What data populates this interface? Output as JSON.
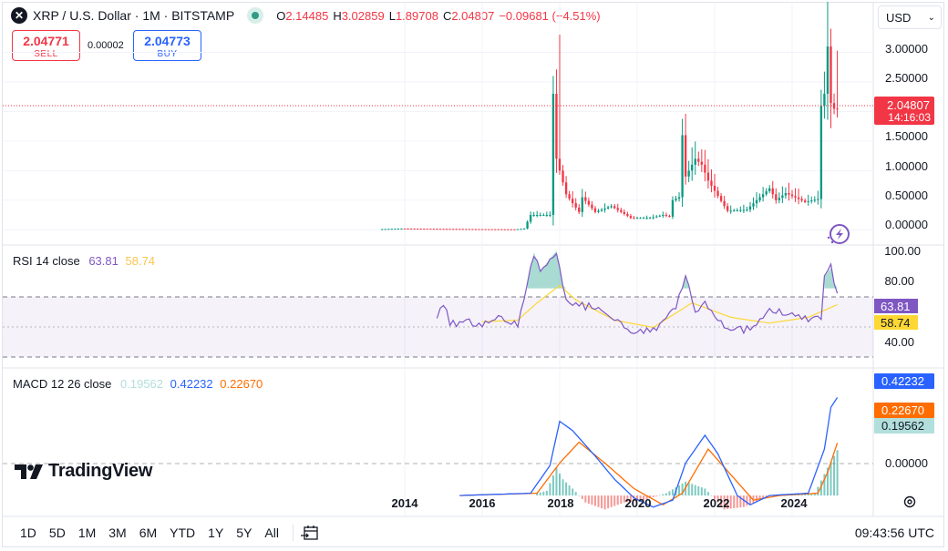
{
  "header": {
    "symbol_title": "XRP / U.S. Dollar · 1M · BITSTAMP",
    "o_label": "O",
    "o_value": "2.14485",
    "h_label": "H",
    "h_value": "3.02859",
    "l_label": "L",
    "l_value": "1.89708",
    "c_label": "C",
    "c_value": "2.04807",
    "change": "−0.09681 (−4.51%)",
    "currency": "USD"
  },
  "trade": {
    "sell_price": "2.04771",
    "sell_label": "SELL",
    "spread": "0.00002",
    "buy_price": "2.04773",
    "buy_label": "BUY"
  },
  "price_axis": {
    "ticks": [
      "3.00000",
      "2.50000",
      "1.50000",
      "1.00000",
      "0.50000",
      "0.00000"
    ],
    "last_price": "2.04807",
    "countdown": "14:16:03"
  },
  "rsi": {
    "title": "RSI 14 close",
    "rsi_value": "63.81",
    "ma_value": "58.74",
    "ticks": [
      "100.00",
      "80.00",
      "40.00"
    ]
  },
  "macd": {
    "title": "MACD 12 26 close",
    "hist_value": "0.19562",
    "macd_value": "0.42232",
    "signal_value": "0.22670",
    "zero_tick": "0.00000"
  },
  "time_axis": [
    "2014",
    "2016",
    "2018",
    "2020",
    "2022",
    "2024"
  ],
  "watermark": "TradingView",
  "bottom": {
    "timeframes": [
      "1D",
      "5D",
      "1M",
      "3M",
      "6M",
      "YTD",
      "1Y",
      "5Y",
      "All"
    ],
    "clock": "09:43:56 UTC"
  },
  "colors": {
    "up": "#089981",
    "down": "#f23645",
    "rsi": "#7e57c2",
    "rsi_ma": "#fdd835",
    "macd": "#2962ff",
    "signal": "#ff6d00",
    "hist_pos": "#26a69a",
    "hist_neg": "#ef5350"
  },
  "chart_data": [
    {
      "type": "candlestick",
      "title": "XRP / U.S. Dollar · 1M · BITSTAMP",
      "ylim": [
        -0.15,
        3.3
      ],
      "x_range": [
        "2013-01",
        "2025-06"
      ],
      "anchors": [
        {
          "t": "2013-06",
          "v": 0.01
        },
        {
          "t": "2014-01",
          "v": 0.02
        },
        {
          "t": "2015-01",
          "v": 0.015
        },
        {
          "t": "2016-12",
          "v": 0.007
        },
        {
          "t": "2017-03",
          "v": 0.02
        },
        {
          "t": "2017-05",
          "v": 0.25
        },
        {
          "t": "2017-11",
          "v": 0.25
        },
        {
          "t": "2017-12",
          "v": 2.3
        },
        {
          "t": "2018-01",
          "v": 1.2
        },
        {
          "t": "2018-04",
          "v": 0.6
        },
        {
          "t": "2018-08",
          "v": 0.3
        },
        {
          "t": "2018-09",
          "v": 0.55
        },
        {
          "t": "2019-01",
          "v": 0.3
        },
        {
          "t": "2019-06",
          "v": 0.4
        },
        {
          "t": "2019-12",
          "v": 0.2
        },
        {
          "t": "2020-06",
          "v": 0.2
        },
        {
          "t": "2020-10",
          "v": 0.25
        },
        {
          "t": "2020-12",
          "v": 0.22
        },
        {
          "t": "2021-01",
          "v": 0.5
        },
        {
          "t": "2021-03",
          "v": 0.55
        },
        {
          "t": "2021-04",
          "v": 1.6
        },
        {
          "t": "2021-05",
          "v": 0.9
        },
        {
          "t": "2021-08",
          "v": 1.2
        },
        {
          "t": "2021-10",
          "v": 1.1
        },
        {
          "t": "2021-12",
          "v": 0.83
        },
        {
          "t": "2022-05",
          "v": 0.4
        },
        {
          "t": "2022-06",
          "v": 0.32
        },
        {
          "t": "2022-12",
          "v": 0.34
        },
        {
          "t": "2023-03",
          "v": 0.5
        },
        {
          "t": "2023-07",
          "v": 0.7
        },
        {
          "t": "2023-09",
          "v": 0.5
        },
        {
          "t": "2023-12",
          "v": 0.62
        },
        {
          "t": "2024-06",
          "v": 0.47
        },
        {
          "t": "2024-10",
          "v": 0.52
        },
        {
          "t": "2024-11",
          "v": 2.1
        },
        {
          "t": "2024-12",
          "v": 2.3
        },
        {
          "t": "2025-01",
          "v": 3.1
        },
        {
          "t": "2025-02",
          "v": 2.14
        },
        {
          "t": "2025-03",
          "v": 2.04807
        }
      ],
      "last_close": 2.04807,
      "high": 3.02859,
      "low": 1.89708,
      "xlabel": "",
      "ylabel": ""
    },
    {
      "type": "line",
      "title": "RSI 14 close",
      "ylim": [
        15,
        100
      ],
      "bands": [
        70,
        30
      ],
      "series": [
        {
          "name": "RSI",
          "points": [
            {
              "t": "2014-11",
              "v": 48
            },
            {
              "t": "2015-01",
              "v": 60
            },
            {
              "t": "2015-03",
              "v": 45
            },
            {
              "t": "2015-08",
              "v": 48
            },
            {
              "t": "2015-12",
              "v": 44
            },
            {
              "t": "2016-06",
              "v": 50
            },
            {
              "t": "2016-12",
              "v": 44
            },
            {
              "t": "2017-03",
              "v": 72
            },
            {
              "t": "2017-05",
              "v": 95
            },
            {
              "t": "2017-07",
              "v": 82
            },
            {
              "t": "2017-12",
              "v": 96
            },
            {
              "t": "2018-03",
              "v": 60
            },
            {
              "t": "2018-09",
              "v": 58
            },
            {
              "t": "2019-06",
              "v": 50
            },
            {
              "t": "2019-12",
              "v": 40
            },
            {
              "t": "2020-06",
              "v": 42
            },
            {
              "t": "2021-01",
              "v": 55
            },
            {
              "t": "2021-04",
              "v": 78
            },
            {
              "t": "2021-07",
              "v": 55
            },
            {
              "t": "2021-10",
              "v": 60
            },
            {
              "t": "2022-06",
              "v": 40
            },
            {
              "t": "2022-12",
              "v": 42
            },
            {
              "t": "2023-07",
              "v": 55
            },
            {
              "t": "2024-02",
              "v": 50
            },
            {
              "t": "2024-10",
              "v": 48
            },
            {
              "t": "2024-11",
              "v": 78
            },
            {
              "t": "2025-01",
              "v": 84
            },
            {
              "t": "2025-03",
              "v": 63.81
            }
          ]
        },
        {
          "name": "RSI MA",
          "points": [
            {
              "t": "2016-01",
              "v": 47
            },
            {
              "t": "2016-12",
              "v": 48
            },
            {
              "t": "2017-06",
              "v": 60
            },
            {
              "t": "2018-01",
              "v": 72
            },
            {
              "t": "2018-06",
              "v": 62
            },
            {
              "t": "2019-06",
              "v": 48
            },
            {
              "t": "2020-06",
              "v": 43
            },
            {
              "t": "2021-06",
              "v": 60
            },
            {
              "t": "2022-06",
              "v": 50
            },
            {
              "t": "2023-06",
              "v": 46
            },
            {
              "t": "2024-06",
              "v": 50
            },
            {
              "t": "2025-03",
              "v": 58.74
            }
          ]
        }
      ]
    },
    {
      "type": "line",
      "title": "MACD 12 26 close",
      "ylim": [
        -0.09,
        0.55
      ],
      "series": [
        {
          "name": "MACD",
          "points": [
            {
              "t": "2015-06",
              "v": 0
            },
            {
              "t": "2017-04",
              "v": 0.01
            },
            {
              "t": "2017-10",
              "v": 0.13
            },
            {
              "t": "2018-01",
              "v": 0.32
            },
            {
              "t": "2018-05",
              "v": 0.28
            },
            {
              "t": "2018-12",
              "v": 0.17
            },
            {
              "t": "2019-06",
              "v": 0.07
            },
            {
              "t": "2019-12",
              "v": -0.01
            },
            {
              "t": "2020-06",
              "v": -0.05
            },
            {
              "t": "2020-12",
              "v": -0.02
            },
            {
              "t": "2021-04",
              "v": 0.14
            },
            {
              "t": "2021-10",
              "v": 0.26
            },
            {
              "t": "2022-02",
              "v": 0.18
            },
            {
              "t": "2022-08",
              "v": 0.0
            },
            {
              "t": "2022-12",
              "v": -0.04
            },
            {
              "t": "2023-06",
              "v": 0.0
            },
            {
              "t": "2024-06",
              "v": 0.01
            },
            {
              "t": "2024-11",
              "v": 0.2
            },
            {
              "t": "2025-01",
              "v": 0.38
            },
            {
              "t": "2025-03",
              "v": 0.42232
            }
          ]
        },
        {
          "name": "Signal",
          "points": [
            {
              "t": "2015-06",
              "v": 0
            },
            {
              "t": "2017-06",
              "v": 0.01
            },
            {
              "t": "2018-01",
              "v": 0.14
            },
            {
              "t": "2018-07",
              "v": 0.23
            },
            {
              "t": "2019-03",
              "v": 0.14
            },
            {
              "t": "2019-12",
              "v": 0.03
            },
            {
              "t": "2020-09",
              "v": -0.04
            },
            {
              "t": "2021-03",
              "v": 0.01
            },
            {
              "t": "2021-11",
              "v": 0.2
            },
            {
              "t": "2022-06",
              "v": 0.09
            },
            {
              "t": "2023-01",
              "v": -0.02
            },
            {
              "t": "2023-09",
              "v": 0.0
            },
            {
              "t": "2024-09",
              "v": 0.01
            },
            {
              "t": "2024-12",
              "v": 0.1
            },
            {
              "t": "2025-03",
              "v": 0.2267
            }
          ]
        }
      ],
      "histogram": [
        {
          "t": "2017-06",
          "v": 0.01
        },
        {
          "t": "2017-09",
          "v": 0.02
        },
        {
          "t": "2017-12",
          "v": 0.12
        },
        {
          "t": "2018-02",
          "v": 0.07
        },
        {
          "t": "2018-05",
          "v": 0.03
        },
        {
          "t": "2018-09",
          "v": -0.03
        },
        {
          "t": "2019-03",
          "v": -0.06
        },
        {
          "t": "2019-09",
          "v": -0.03
        },
        {
          "t": "2020-03",
          "v": -0.02
        },
        {
          "t": "2020-10",
          "v": 0.01
        },
        {
          "t": "2021-04",
          "v": 0.06
        },
        {
          "t": "2021-10",
          "v": 0.03
        },
        {
          "t": "2022-04",
          "v": -0.06
        },
        {
          "t": "2022-10",
          "v": -0.05
        },
        {
          "t": "2023-06",
          "v": 0.0
        },
        {
          "t": "2024-08",
          "v": 0.01
        },
        {
          "t": "2024-12",
          "v": 0.12
        },
        {
          "t": "2025-03",
          "v": 0.19562
        }
      ]
    }
  ]
}
